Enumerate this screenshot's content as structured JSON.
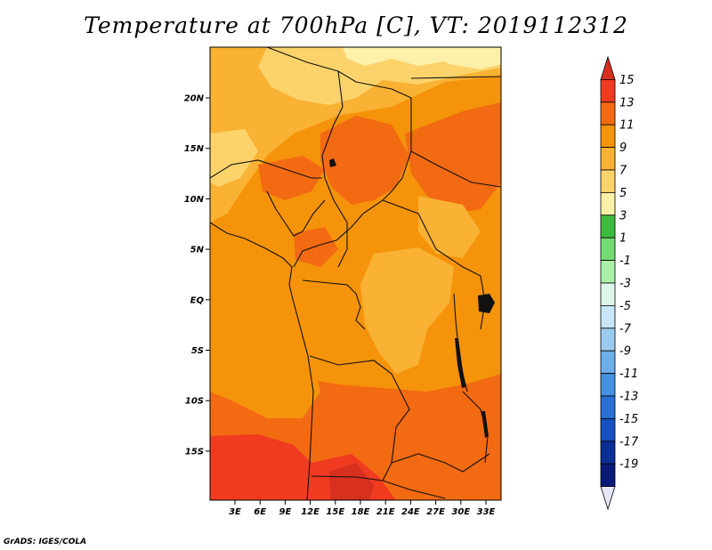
{
  "title": "Temperature at 700hPa [C], VT: 2019112312",
  "credit": "GrADS: IGES/COLA",
  "map": {
    "lat_labels": [
      "20N",
      "15N",
      "10N",
      "5N",
      "EQ",
      "5S",
      "10S",
      "15S"
    ],
    "lon_labels": [
      "3E",
      "6E",
      "9E",
      "12E",
      "15E",
      "18E",
      "21E",
      "24E",
      "27E",
      "30E",
      "33E"
    ]
  },
  "colorbar": {
    "labels": [
      "15",
      "13",
      "11",
      "9",
      "7",
      "5",
      "3",
      "1",
      "-1",
      "-3",
      "-5",
      "-7",
      "-9",
      "-11",
      "-13",
      "-15",
      "-17",
      "-19"
    ],
    "colors": [
      "#d7301f",
      "#f03b20",
      "#f26a12",
      "#f5930a",
      "#f9b233",
      "#fcd36b",
      "#fdf0a8",
      "#3dbb3d",
      "#74db74",
      "#aaf0aa",
      "#dff6e8",
      "#c8e6f7",
      "#9ccbf0",
      "#6eaeea",
      "#4590e0",
      "#2a6fd4",
      "#1750c0",
      "#0a2f96",
      "#0a1a78",
      "#e6e6f8"
    ]
  }
}
